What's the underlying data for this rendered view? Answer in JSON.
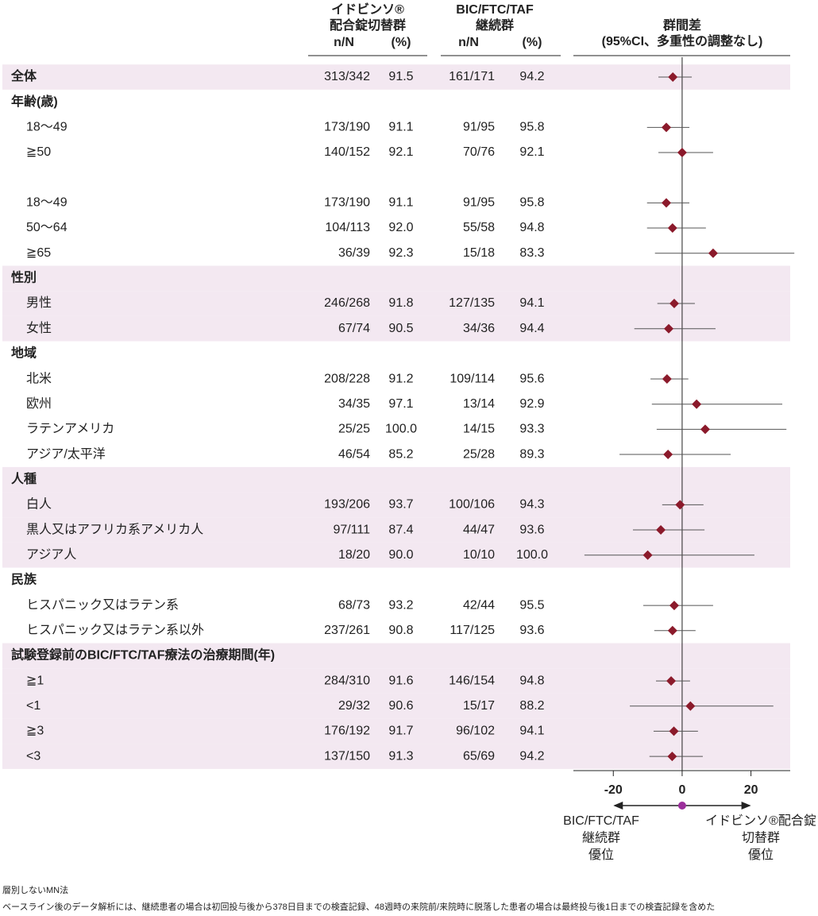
{
  "chart_data": {
    "type": "forest",
    "columns": [
      {
        "title": [
          "イドビンソ®",
          "配合錠切替群"
        ],
        "n_header": "n/N",
        "pct_header": "(%)"
      },
      {
        "title": [
          "BIC/FTC/TAF",
          "継続群"
        ],
        "n_header": "n/N",
        "pct_header": "(%)"
      }
    ],
    "plot_title": [
      "群間差",
      "(95%CI、多重性の調整なし)"
    ],
    "rows": [
      {
        "label": "全体",
        "level": 0,
        "shaded": true,
        "n1": "313/342",
        "p1": "91.5",
        "n2": "161/171",
        "p2": "94.2",
        "diff": -2.7,
        "ci": [
          -6.9,
          2.8
        ]
      },
      {
        "label": "年齢(歳)",
        "level": 0
      },
      {
        "label": "18〜49",
        "level": 1,
        "n1": "173/190",
        "p1": "91.1",
        "n2": "91/95",
        "p2": "95.8",
        "diff": -4.6,
        "ci": [
          -10.2,
          2.1
        ]
      },
      {
        "label": "≧50",
        "level": 1,
        "n1": "140/152",
        "p1": "92.1",
        "n2": "70/76",
        "p2": "92.1",
        "diff": 0.0,
        "ci": [
          -6.9,
          9.0
        ]
      },
      {
        "label": null
      },
      {
        "label": "18〜49",
        "level": 1,
        "n1": "173/190",
        "p1": "91.1",
        "n2": "91/95",
        "p2": "95.8",
        "diff": -4.6,
        "ci": [
          -10.2,
          2.1
        ]
      },
      {
        "label": "50〜64",
        "level": 1,
        "n1": "104/113",
        "p1": "92.0",
        "n2": "55/58",
        "p2": "94.8",
        "diff": -2.8,
        "ci": [
          -10.2,
          6.9
        ]
      },
      {
        "label": "≧65",
        "level": 1,
        "n1": "36/39",
        "p1": "92.3",
        "n2": "15/18",
        "p2": "83.3",
        "diff": 9.0,
        "ci": [
          -7.9,
          32.6
        ]
      },
      {
        "label": "性別",
        "level": 0,
        "shaded": true
      },
      {
        "label": "男性",
        "level": 1,
        "shaded": true,
        "n1": "246/268",
        "p1": "91.8",
        "n2": "127/135",
        "p2": "94.1",
        "diff": -2.3,
        "ci": [
          -7.2,
          3.7
        ]
      },
      {
        "label": "女性",
        "level": 1,
        "shaded": true,
        "n1": "67/74",
        "p1": "90.5",
        "n2": "34/36",
        "p2": "94.4",
        "diff": -3.9,
        "ci": [
          -13.9,
          9.7
        ]
      },
      {
        "label": "地域",
        "level": 0
      },
      {
        "label": "北米",
        "level": 1,
        "n1": "208/228",
        "p1": "91.2",
        "n2": "109/114",
        "p2": "95.6",
        "diff": -4.4,
        "ci": [
          -9.2,
          1.8
        ]
      },
      {
        "label": "欧州",
        "level": 1,
        "n1": "34/35",
        "p1": "97.1",
        "n2": "13/14",
        "p2": "92.9",
        "diff": 4.2,
        "ci": [
          -8.8,
          29.1
        ]
      },
      {
        "label": "ラテンアメリカ",
        "level": 1,
        "n1": "25/25",
        "p1": "100.0",
        "n2": "14/15",
        "p2": "93.3",
        "diff": 6.7,
        "ci": [
          -7.4,
          30.3
        ]
      },
      {
        "label": "アジア/太平洋",
        "level": 1,
        "n1": "46/54",
        "p1": "85.2",
        "n2": "25/28",
        "p2": "89.3",
        "diff": -4.1,
        "ci": [
          -18.2,
          14.1
        ]
      },
      {
        "label": "人種",
        "level": 0,
        "shaded": true
      },
      {
        "label": "白人",
        "level": 1,
        "shaded": true,
        "n1": "193/206",
        "p1": "93.7",
        "n2": "100/106",
        "p2": "94.3",
        "diff": -0.6,
        "ci": [
          -5.8,
          6.2
        ]
      },
      {
        "label": "黒人又はアフリカ系アメリカ人",
        "level": 1,
        "shaded": true,
        "n1": "97/111",
        "p1": "87.4",
        "n2": "44/47",
        "p2": "93.6",
        "diff": -6.2,
        "ci": [
          -14.3,
          6.5
        ]
      },
      {
        "label": "アジア人",
        "level": 1,
        "shaded": true,
        "n1": "18/20",
        "p1": "90.0",
        "n2": "10/10",
        "p2": "100.0",
        "diff": -10.0,
        "ci": [
          -28.4,
          21.0
        ]
      },
      {
        "label": "民族",
        "level": 0
      },
      {
        "label": "ヒスパニック又はラテン系",
        "level": 1,
        "n1": "68/73",
        "p1": "93.2",
        "n2": "42/44",
        "p2": "95.5",
        "diff": -2.3,
        "ci": [
          -11.3,
          9.0
        ]
      },
      {
        "label": "ヒスパニック又はラテン系以外",
        "level": 1,
        "n1": "237/261",
        "p1": "90.8",
        "n2": "117/125",
        "p2": "93.6",
        "diff": -2.8,
        "ci": [
          -8.1,
          3.9
        ]
      },
      {
        "label": "試験登録前のBIC/FTC/TAF療法の治療期間(年)",
        "level": 0,
        "shaded": true
      },
      {
        "label": "≧1",
        "level": 1,
        "shaded": true,
        "n1": "284/310",
        "p1": "91.6",
        "n2": "146/154",
        "p2": "94.8",
        "diff": -3.2,
        "ci": [
          -7.6,
          2.3
        ]
      },
      {
        "label": "<1",
        "level": 1,
        "shaded": true,
        "n1": "29/32",
        "p1": "90.6",
        "n2": "15/17",
        "p2": "88.2",
        "diff": 2.4,
        "ci": [
          -15.2,
          26.5
        ]
      },
      {
        "label": "≧3",
        "level": 1,
        "shaded": true,
        "n1": "176/192",
        "p1": "91.7",
        "n2": "96/102",
        "p2": "94.1",
        "diff": -2.4,
        "ci": [
          -8.3,
          4.6
        ]
      },
      {
        "label": "<3",
        "level": 1,
        "shaded": true,
        "n1": "137/150",
        "p1": "91.3",
        "n2": "65/69",
        "p2": "94.2",
        "diff": -2.9,
        "ci": [
          -9.5,
          6.0
        ]
      }
    ],
    "xlim": [
      -31.6,
      31.4
    ],
    "xticks": [
      -20,
      0,
      20
    ],
    "marker_color": "#8b1a2b",
    "shade_color": "#f3e8f1",
    "favors_left": [
      "BIC/FTC/TAF",
      "継続群",
      "優位"
    ],
    "favors_right": [
      "イドビンソ®配合錠",
      "切替群",
      "優位"
    ],
    "footnotes": [
      "層別しないMN法",
      "ベースライン後のデータ解析には、継続患者の場合は初回投与後から378日目までの検査記録、48週時の来院前/来院時に脱落した患者の場合は最終投与後1日までの検査記録を含めた"
    ]
  }
}
